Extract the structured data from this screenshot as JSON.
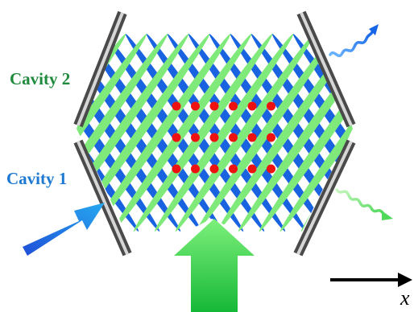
{
  "labels": {
    "cavity2": "Cavity 2",
    "cavity1": "Cavity 1",
    "axis": "x"
  },
  "colors": {
    "cavity2": "#1f8a3c",
    "cavity1": "#1c78d0",
    "green_beam": "#7fea7a",
    "blue_beam": "#1a63e0",
    "atom": "#ee1111",
    "mirror_dark": "#4a4a4a",
    "mirror_light": "#d6d6d6"
  },
  "atom_grid": {
    "rows": 3,
    "cols": 6
  }
}
